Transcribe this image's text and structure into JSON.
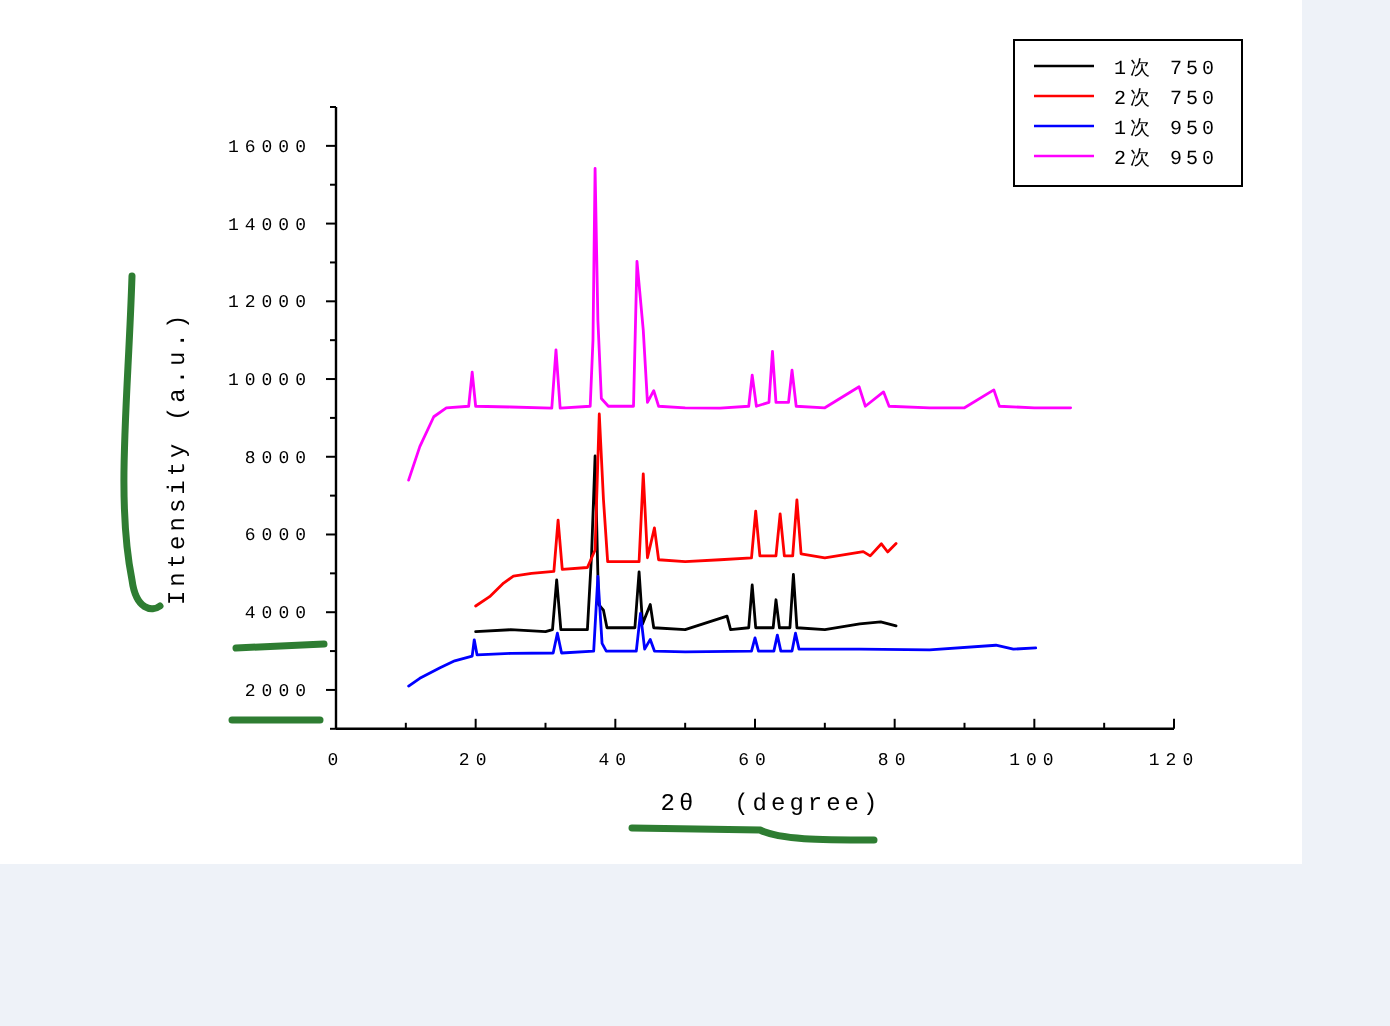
{
  "chart_data": {
    "type": "line",
    "xlabel": "2θ  (degree)",
    "ylabel": "Intensity (a.u.)",
    "xlim": [
      0,
      120
    ],
    "ylim": [
      1000,
      17000
    ],
    "xticks": [
      0,
      {
        "value": 10,
        "label": null
      },
      20,
      {
        "value": 30,
        "label": null
      },
      40,
      {
        "value": 50,
        "label": null
      },
      60,
      {
        "value": 70,
        "label": null
      },
      80,
      {
        "value": 90,
        "label": null
      },
      100,
      {
        "value": 110,
        "label": null
      },
      120
    ],
    "yticks": [
      {
        "value": 1000,
        "label": null
      },
      2000,
      {
        "value": 3000,
        "label": null
      },
      4000,
      {
        "value": 5000,
        "label": null
      },
      6000,
      {
        "value": 7000,
        "label": null
      },
      8000,
      {
        "value": 9000,
        "label": null
      },
      10000,
      {
        "value": 11000,
        "label": null
      },
      12000,
      {
        "value": 13000,
        "label": null
      },
      14000,
      {
        "value": 15000,
        "label": null
      },
      16000,
      {
        "value": 17000,
        "label": null
      }
    ],
    "legend": "top right",
    "series": [
      {
        "name": "1次 750",
        "color": "#000000",
        "x": [
          20,
          25,
          30,
          31.0,
          31.6,
          32.2,
          36.0,
          36.6,
          37.1,
          37.6,
          38.3,
          38.8,
          42.8,
          43.4,
          43.9,
          45.0,
          45.5,
          50,
          56,
          56.5,
          59.1,
          59.6,
          60.1,
          62.6,
          63.0,
          63.5,
          65.0,
          65.5,
          66.0,
          70,
          75,
          78,
          80.2
        ],
        "values": [
          3500,
          3550,
          3500,
          3550,
          4830,
          3550,
          3550,
          5500,
          8020,
          4200,
          4050,
          3600,
          3600,
          5040,
          3700,
          4200,
          3600,
          3550,
          3900,
          3550,
          3600,
          4700,
          3600,
          3600,
          4320,
          3600,
          3600,
          4970,
          3600,
          3550,
          3700,
          3750,
          3650
        ]
      },
      {
        "name": "2次 750",
        "color": "#ff0000",
        "x": [
          20,
          22,
          24,
          25.4,
          28,
          31.2,
          31.8,
          32.4,
          36,
          37.1,
          37.7,
          38.3,
          38.9,
          43.4,
          44.0,
          44.6,
          45.6,
          46.2,
          50,
          55,
          59.5,
          60.1,
          60.7,
          63.0,
          63.6,
          64.2,
          65.4,
          66.0,
          66.6,
          70,
          75.5,
          76.5,
          78.1,
          79,
          80.2
        ],
        "values": [
          4160,
          4400,
          4750,
          4930,
          5000,
          5050,
          6370,
          5100,
          5150,
          5600,
          9100,
          6900,
          5300,
          5300,
          7560,
          5400,
          6170,
          5350,
          5300,
          5350,
          5400,
          6600,
          5450,
          5450,
          6530,
          5450,
          5450,
          6890,
          5500,
          5400,
          5560,
          5450,
          5760,
          5550,
          5770
        ]
      },
      {
        "name": "1次 950",
        "color": "#0000ff",
        "x": [
          10.4,
          12,
          14.9,
          17,
          19.5,
          19.8,
          20.2,
          25,
          31.1,
          31.7,
          32.3,
          36.9,
          37.5,
          38.1,
          38.7,
          43.0,
          43.6,
          44.2,
          45.0,
          45.6,
          50,
          59.5,
          60,
          60.5,
          62.7,
          63.2,
          63.7,
          65.3,
          65.8,
          66.3,
          75,
          85,
          94.5,
          97,
          100.2
        ],
        "values": [
          2100,
          2300,
          2570,
          2750,
          2870,
          3290,
          2900,
          2940,
          2950,
          3460,
          2950,
          3000,
          4920,
          3200,
          3000,
          3000,
          3970,
          3050,
          3300,
          3000,
          2980,
          3000,
          3340,
          3000,
          3000,
          3410,
          3000,
          3000,
          3460,
          3050,
          3050,
          3030,
          3150,
          3050,
          3080
        ]
      },
      {
        "name": "2次 950",
        "color": "#ff00ff",
        "x": [
          10.4,
          12.0,
          14.0,
          15.8,
          19.0,
          19.5,
          20.0,
          25,
          30.9,
          31.5,
          32.1,
          36.4,
          36.8,
          37.1,
          37.5,
          38.0,
          39,
          42.6,
          43.1,
          44.0,
          44.6,
          45.5,
          46.2,
          50,
          55,
          59.1,
          59.6,
          60.2,
          62.0,
          62.5,
          63.0,
          64.8,
          65.3,
          65.9,
          70,
          74.9,
          75.8,
          78.4,
          79.2,
          85,
          90,
          94.2,
          95,
          100,
          105.2
        ],
        "values": [
          7400,
          8260,
          9030,
          9260,
          9300,
          10180,
          9300,
          9280,
          9250,
          10750,
          9250,
          9300,
          11000,
          15420,
          11520,
          9500,
          9300,
          9300,
          13030,
          11260,
          9400,
          9700,
          9300,
          9260,
          9250,
          9300,
          10100,
          9300,
          9400,
          10710,
          9400,
          9400,
          10230,
          9300,
          9260,
          9800,
          9300,
          9670,
          9300,
          9260,
          9260,
          9720,
          9300,
          9260,
          9260
        ]
      }
    ]
  }
}
